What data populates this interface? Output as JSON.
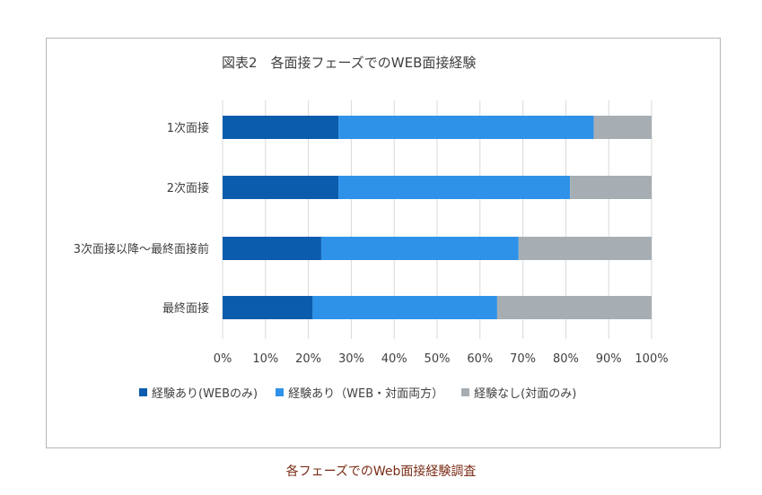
{
  "caption": "各フェーズでのWeb面接経験調査",
  "chart_data": {
    "type": "bar",
    "orientation": "horizontal",
    "stacked": "percent",
    "title": "図表2　各面接フェーズでのWEB面接経験",
    "categories": [
      "1次面接",
      "2次面接",
      "3次面接以降～最終面接前",
      "最終面接"
    ],
    "series": [
      {
        "name": "経験あり(WEBのみ)",
        "color": "#0b5cad",
        "values": [
          27,
          27,
          23,
          21
        ]
      },
      {
        "name": "経験あり（WEB・対面両方）",
        "color": "#2e92e8",
        "values": [
          59.5,
          54,
          46,
          43
        ]
      },
      {
        "name": "経験なし(対面のみ)",
        "color": "#a7aeb3",
        "values": [
          13.5,
          19,
          31,
          36
        ]
      }
    ],
    "xlim": [
      0,
      100
    ],
    "xticks": [
      "0%",
      "10%",
      "20%",
      "30%",
      "40%",
      "50%",
      "60%",
      "70%",
      "80%",
      "90%",
      "100%"
    ],
    "grid": true,
    "legend_position": "bottom"
  }
}
